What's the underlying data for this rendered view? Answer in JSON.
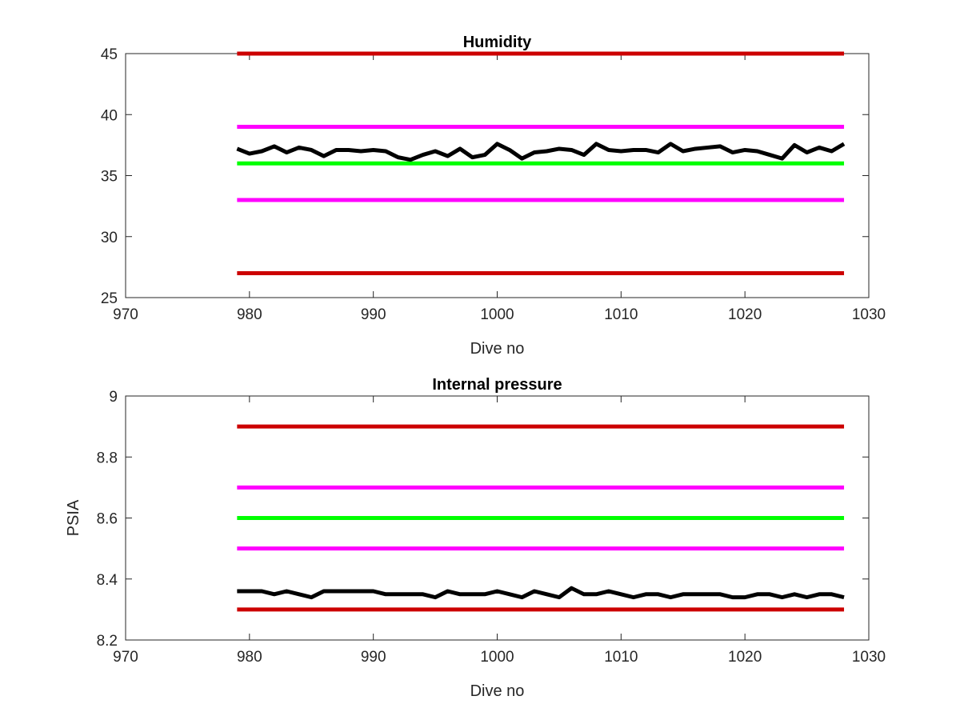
{
  "chart_data": [
    {
      "type": "line",
      "title": "Humidity",
      "xlabel": "Dive no",
      "ylabel": "",
      "xlim": [
        970,
        1030
      ],
      "ylim": [
        25,
        45
      ],
      "xticks": [
        970,
        980,
        990,
        1000,
        1010,
        1020,
        1030
      ],
      "yticks": [
        25,
        30,
        35,
        40,
        45
      ],
      "grid": false,
      "reference_lines": [
        {
          "y": 45,
          "x_range": [
            979,
            1028
          ],
          "color": "#cc0000"
        },
        {
          "y": 39,
          "x_range": [
            979,
            1028
          ],
          "color": "#ff00ff"
        },
        {
          "y": 36,
          "x_range": [
            979,
            1028
          ],
          "color": "#00ff00"
        },
        {
          "y": 33,
          "x_range": [
            979,
            1028
          ],
          "color": "#ff00ff"
        },
        {
          "y": 27,
          "x_range": [
            979,
            1028
          ],
          "color": "#cc0000"
        }
      ],
      "series": [
        {
          "color": "#000000",
          "x": [
            979,
            980,
            981,
            982,
            983,
            984,
            985,
            986,
            987,
            988,
            989,
            990,
            991,
            992,
            993,
            994,
            995,
            996,
            997,
            998,
            999,
            1000,
            1001,
            1002,
            1003,
            1004,
            1005,
            1006,
            1007,
            1008,
            1009,
            1010,
            1011,
            1012,
            1013,
            1014,
            1015,
            1016,
            1017,
            1018,
            1019,
            1020,
            1021,
            1022,
            1023,
            1024,
            1025,
            1026,
            1027,
            1028
          ],
          "y": [
            37.2,
            36.8,
            37.0,
            37.4,
            36.9,
            37.3,
            37.1,
            36.6,
            37.1,
            37.1,
            37.0,
            37.1,
            37.0,
            36.5,
            36.3,
            36.7,
            37.0,
            36.6,
            37.2,
            36.5,
            36.7,
            37.6,
            37.1,
            36.4,
            36.9,
            37.0,
            37.2,
            37.1,
            36.7,
            37.6,
            37.1,
            37.0,
            37.1,
            37.1,
            36.9,
            37.6,
            37.0,
            37.2,
            37.3,
            37.4,
            36.9,
            37.1,
            37.0,
            36.7,
            36.4,
            37.5,
            36.9,
            37.3,
            37.0,
            37.6
          ]
        }
      ]
    },
    {
      "type": "line",
      "title": "Internal pressure",
      "xlabel": "Dive no",
      "ylabel": "PSIA",
      "xlim": [
        970,
        1030
      ],
      "ylim": [
        8.2,
        9
      ],
      "xticks": [
        970,
        980,
        990,
        1000,
        1010,
        1020,
        1030
      ],
      "yticks": [
        8.2,
        8.4,
        8.6,
        8.8,
        9
      ],
      "ytick_labels": [
        "8.2",
        "8.4",
        "8.6",
        "8.8",
        "9"
      ],
      "grid": false,
      "reference_lines": [
        {
          "y": 8.9,
          "x_range": [
            979,
            1028
          ],
          "color": "#cc0000"
        },
        {
          "y": 8.7,
          "x_range": [
            979,
            1028
          ],
          "color": "#ff00ff"
        },
        {
          "y": 8.6,
          "x_range": [
            979,
            1028
          ],
          "color": "#00ff00"
        },
        {
          "y": 8.5,
          "x_range": [
            979,
            1028
          ],
          "color": "#ff00ff"
        },
        {
          "y": 8.3,
          "x_range": [
            979,
            1028
          ],
          "color": "#cc0000"
        }
      ],
      "series": [
        {
          "color": "#000000",
          "x": [
            979,
            980,
            981,
            982,
            983,
            984,
            985,
            986,
            987,
            988,
            989,
            990,
            991,
            992,
            993,
            994,
            995,
            996,
            997,
            998,
            999,
            1000,
            1001,
            1002,
            1003,
            1004,
            1005,
            1006,
            1007,
            1008,
            1009,
            1010,
            1011,
            1012,
            1013,
            1014,
            1015,
            1016,
            1017,
            1018,
            1019,
            1020,
            1021,
            1022,
            1023,
            1024,
            1025,
            1026,
            1027,
            1028
          ],
          "y": [
            8.36,
            8.36,
            8.36,
            8.35,
            8.36,
            8.35,
            8.34,
            8.36,
            8.36,
            8.36,
            8.36,
            8.36,
            8.35,
            8.35,
            8.35,
            8.35,
            8.34,
            8.36,
            8.35,
            8.35,
            8.35,
            8.36,
            8.35,
            8.34,
            8.36,
            8.35,
            8.34,
            8.37,
            8.35,
            8.35,
            8.36,
            8.35,
            8.34,
            8.35,
            8.35,
            8.34,
            8.35,
            8.35,
            8.35,
            8.35,
            8.34,
            8.34,
            8.35,
            8.35,
            8.34,
            8.35,
            8.34,
            8.35,
            8.35,
            8.34
          ]
        }
      ]
    }
  ]
}
